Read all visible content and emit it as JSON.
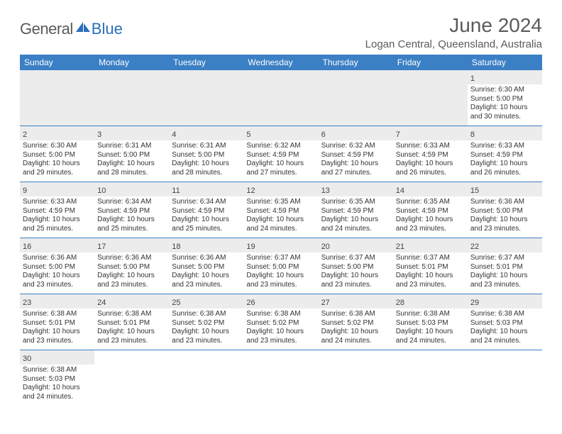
{
  "logo": {
    "general": "General",
    "blue": "Blue"
  },
  "title": "June 2024",
  "location": "Logan Central, Queensland, Australia",
  "accent_color": "#3b7fc4",
  "daynum_bg": "#ececec",
  "text_color": "#333333",
  "header_text_color": "#5a5a5a",
  "weekdays": [
    "Sunday",
    "Monday",
    "Tuesday",
    "Wednesday",
    "Thursday",
    "Friday",
    "Saturday"
  ],
  "weeks": [
    [
      null,
      null,
      null,
      null,
      null,
      null,
      {
        "n": "1",
        "sunrise": "Sunrise: 6:30 AM",
        "sunset": "Sunset: 5:00 PM",
        "day1": "Daylight: 10 hours",
        "day2": "and 30 minutes."
      }
    ],
    [
      {
        "n": "2",
        "sunrise": "Sunrise: 6:30 AM",
        "sunset": "Sunset: 5:00 PM",
        "day1": "Daylight: 10 hours",
        "day2": "and 29 minutes."
      },
      {
        "n": "3",
        "sunrise": "Sunrise: 6:31 AM",
        "sunset": "Sunset: 5:00 PM",
        "day1": "Daylight: 10 hours",
        "day2": "and 28 minutes."
      },
      {
        "n": "4",
        "sunrise": "Sunrise: 6:31 AM",
        "sunset": "Sunset: 5:00 PM",
        "day1": "Daylight: 10 hours",
        "day2": "and 28 minutes."
      },
      {
        "n": "5",
        "sunrise": "Sunrise: 6:32 AM",
        "sunset": "Sunset: 4:59 PM",
        "day1": "Daylight: 10 hours",
        "day2": "and 27 minutes."
      },
      {
        "n": "6",
        "sunrise": "Sunrise: 6:32 AM",
        "sunset": "Sunset: 4:59 PM",
        "day1": "Daylight: 10 hours",
        "day2": "and 27 minutes."
      },
      {
        "n": "7",
        "sunrise": "Sunrise: 6:33 AM",
        "sunset": "Sunset: 4:59 PM",
        "day1": "Daylight: 10 hours",
        "day2": "and 26 minutes."
      },
      {
        "n": "8",
        "sunrise": "Sunrise: 6:33 AM",
        "sunset": "Sunset: 4:59 PM",
        "day1": "Daylight: 10 hours",
        "day2": "and 26 minutes."
      }
    ],
    [
      {
        "n": "9",
        "sunrise": "Sunrise: 6:33 AM",
        "sunset": "Sunset: 4:59 PM",
        "day1": "Daylight: 10 hours",
        "day2": "and 25 minutes."
      },
      {
        "n": "10",
        "sunrise": "Sunrise: 6:34 AM",
        "sunset": "Sunset: 4:59 PM",
        "day1": "Daylight: 10 hours",
        "day2": "and 25 minutes."
      },
      {
        "n": "11",
        "sunrise": "Sunrise: 6:34 AM",
        "sunset": "Sunset: 4:59 PM",
        "day1": "Daylight: 10 hours",
        "day2": "and 25 minutes."
      },
      {
        "n": "12",
        "sunrise": "Sunrise: 6:35 AM",
        "sunset": "Sunset: 4:59 PM",
        "day1": "Daylight: 10 hours",
        "day2": "and 24 minutes."
      },
      {
        "n": "13",
        "sunrise": "Sunrise: 6:35 AM",
        "sunset": "Sunset: 4:59 PM",
        "day1": "Daylight: 10 hours",
        "day2": "and 24 minutes."
      },
      {
        "n": "14",
        "sunrise": "Sunrise: 6:35 AM",
        "sunset": "Sunset: 4:59 PM",
        "day1": "Daylight: 10 hours",
        "day2": "and 23 minutes."
      },
      {
        "n": "15",
        "sunrise": "Sunrise: 6:36 AM",
        "sunset": "Sunset: 5:00 PM",
        "day1": "Daylight: 10 hours",
        "day2": "and 23 minutes."
      }
    ],
    [
      {
        "n": "16",
        "sunrise": "Sunrise: 6:36 AM",
        "sunset": "Sunset: 5:00 PM",
        "day1": "Daylight: 10 hours",
        "day2": "and 23 minutes."
      },
      {
        "n": "17",
        "sunrise": "Sunrise: 6:36 AM",
        "sunset": "Sunset: 5:00 PM",
        "day1": "Daylight: 10 hours",
        "day2": "and 23 minutes."
      },
      {
        "n": "18",
        "sunrise": "Sunrise: 6:36 AM",
        "sunset": "Sunset: 5:00 PM",
        "day1": "Daylight: 10 hours",
        "day2": "and 23 minutes."
      },
      {
        "n": "19",
        "sunrise": "Sunrise: 6:37 AM",
        "sunset": "Sunset: 5:00 PM",
        "day1": "Daylight: 10 hours",
        "day2": "and 23 minutes."
      },
      {
        "n": "20",
        "sunrise": "Sunrise: 6:37 AM",
        "sunset": "Sunset: 5:00 PM",
        "day1": "Daylight: 10 hours",
        "day2": "and 23 minutes."
      },
      {
        "n": "21",
        "sunrise": "Sunrise: 6:37 AM",
        "sunset": "Sunset: 5:01 PM",
        "day1": "Daylight: 10 hours",
        "day2": "and 23 minutes."
      },
      {
        "n": "22",
        "sunrise": "Sunrise: 6:37 AM",
        "sunset": "Sunset: 5:01 PM",
        "day1": "Daylight: 10 hours",
        "day2": "and 23 minutes."
      }
    ],
    [
      {
        "n": "23",
        "sunrise": "Sunrise: 6:38 AM",
        "sunset": "Sunset: 5:01 PM",
        "day1": "Daylight: 10 hours",
        "day2": "and 23 minutes."
      },
      {
        "n": "24",
        "sunrise": "Sunrise: 6:38 AM",
        "sunset": "Sunset: 5:01 PM",
        "day1": "Daylight: 10 hours",
        "day2": "and 23 minutes."
      },
      {
        "n": "25",
        "sunrise": "Sunrise: 6:38 AM",
        "sunset": "Sunset: 5:02 PM",
        "day1": "Daylight: 10 hours",
        "day2": "and 23 minutes."
      },
      {
        "n": "26",
        "sunrise": "Sunrise: 6:38 AM",
        "sunset": "Sunset: 5:02 PM",
        "day1": "Daylight: 10 hours",
        "day2": "and 23 minutes."
      },
      {
        "n": "27",
        "sunrise": "Sunrise: 6:38 AM",
        "sunset": "Sunset: 5:02 PM",
        "day1": "Daylight: 10 hours",
        "day2": "and 24 minutes."
      },
      {
        "n": "28",
        "sunrise": "Sunrise: 6:38 AM",
        "sunset": "Sunset: 5:03 PM",
        "day1": "Daylight: 10 hours",
        "day2": "and 24 minutes."
      },
      {
        "n": "29",
        "sunrise": "Sunrise: 6:38 AM",
        "sunset": "Sunset: 5:03 PM",
        "day1": "Daylight: 10 hours",
        "day2": "and 24 minutes."
      }
    ],
    [
      {
        "n": "30",
        "sunrise": "Sunrise: 6:38 AM",
        "sunset": "Sunset: 5:03 PM",
        "day1": "Daylight: 10 hours",
        "day2": "and 24 minutes."
      },
      null,
      null,
      null,
      null,
      null,
      null
    ]
  ]
}
